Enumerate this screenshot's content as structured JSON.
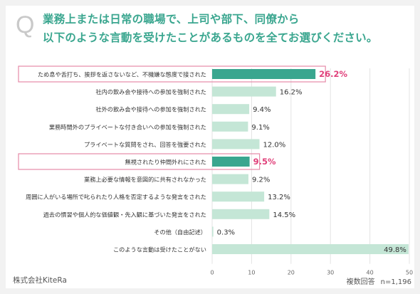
{
  "question": {
    "mark": "Q",
    "line1": "業務上または日常の職場で、上司や部下、同僚から",
    "line2": "以下のような言動を受けたことがあるものを全てお選びください。"
  },
  "chart_data": {
    "type": "bar",
    "orientation": "horizontal",
    "categories": [
      "ため息や舌打ち、挨拶を返さないなど、不機嫌な態度で接された",
      "社内の飲み会や接待への参加を強制された",
      "社外の飲み会や接待への参加を強制された",
      "業務時間外のプライベートな付き合いへの参加を強制された",
      "プライベートな質問をされ、回答を強要された",
      "無視されたり仲間外れにされた",
      "業務上必要な情報を意図的に共有されなかった",
      "周囲に人がいる場所で叱られたり人格を否定するような発言をされた",
      "過去の慣習や個人的な価値観・先入観に基づいた発言をされた",
      "その他（自由記述）",
      "このような言動は受けたことがない"
    ],
    "values": [
      26.2,
      16.2,
      9.4,
      9.1,
      12.0,
      9.5,
      9.2,
      13.2,
      14.5,
      0.3,
      49.8
    ],
    "value_labels": [
      "26.2%",
      "16.2%",
      "9.4%",
      "9.1%",
      "12.0%",
      "9.5%",
      "9.2%",
      "13.2%",
      "14.5%",
      "0.3%",
      "49.8%"
    ],
    "highlighted": [
      0,
      5
    ],
    "xlim": [
      0,
      50
    ],
    "xticks": [
      "0",
      "10",
      "20",
      "30",
      "40",
      "50"
    ],
    "grid": true,
    "colors": {
      "bar": "#c4e6d6",
      "highlight_bar": "#3aa68f",
      "highlight_label": "#e0407a",
      "highlight_box": "#e58aa8",
      "grid": "#e3e3e3",
      "text": "#333333"
    }
  },
  "footer": {
    "company": "株式会社KiteRa",
    "answer_type": "複数回答",
    "sample": "n=1,196"
  }
}
